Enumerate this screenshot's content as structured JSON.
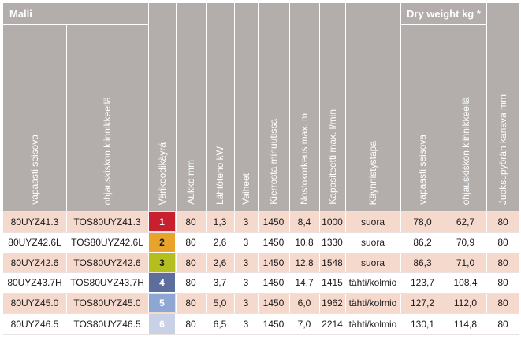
{
  "header": {
    "group_model": "Malli",
    "group_dry_weight": "Dry weight kg *",
    "columns": [
      "vapaasti seisova",
      "ohjauskiskon kiinnikkeellä",
      "Värikoodikäyrä",
      "Aukko mm",
      "Lähtöteho kW",
      "Vaiheet",
      "Kierrosta minuutissa",
      "Nostokorkeus max. m",
      "Kapasiteetti max. l/min",
      "Käynnistystapa",
      "vapaasti seisova",
      "ohjauskiskon kiinnikkeellä",
      "Juoksupyörän kanava mm"
    ]
  },
  "rows": [
    {
      "model": "80UYZ41.3",
      "rail_model": "TOS80UYZ41.3",
      "color_code": "1",
      "color": "#c8202f",
      "code_text_color": "#ffffff",
      "opening": "80",
      "power": "1,3",
      "phases": "3",
      "rpm": "1450",
      "head": "8,4",
      "capacity": "1000",
      "start": "suora",
      "weight_free": "78,0",
      "weight_rail": "62,7",
      "channel": "80"
    },
    {
      "model": "80UYZ42.6L",
      "rail_model": "TOS80UYZ42.6L",
      "color_code": "2",
      "color": "#e8a32a",
      "code_text_color": "#1a1a1a",
      "opening": "80",
      "power": "2,6",
      "phases": "3",
      "rpm": "1450",
      "head": "10,8",
      "capacity": "1330",
      "start": "suora",
      "weight_free": "86,2",
      "weight_rail": "70,9",
      "channel": "80"
    },
    {
      "model": "80UYZ42.6",
      "rail_model": "TOS80UYZ42.6",
      "color_code": "3",
      "color": "#b4be1e",
      "code_text_color": "#1a1a1a",
      "opening": "80",
      "power": "2,6",
      "phases": "3",
      "rpm": "1450",
      "head": "12,8",
      "capacity": "1548",
      "start": "suora",
      "weight_free": "86,3",
      "weight_rail": "71,0",
      "channel": "80"
    },
    {
      "model": "80UYZ43.7H",
      "rail_model": "TOS80UYZ43.7H",
      "color_code": "4",
      "color": "#5e6e9c",
      "code_text_color": "#ffffff",
      "opening": "80",
      "power": "3,7",
      "phases": "3",
      "rpm": "1450",
      "head": "14,7",
      "capacity": "1415",
      "start": "tähti/kolmio",
      "weight_free": "123,7",
      "weight_rail": "108,4",
      "channel": "80"
    },
    {
      "model": "80UYZ45.0",
      "rail_model": "TOS80UYZ45.0",
      "color_code": "5",
      "color": "#8da7d2",
      "code_text_color": "#ffffff",
      "opening": "80",
      "power": "5,0",
      "phases": "3",
      "rpm": "1450",
      "head": "6,0",
      "capacity": "1962",
      "start": "tähti/kolmio",
      "weight_free": "127,2",
      "weight_rail": "112,0",
      "channel": "80"
    },
    {
      "model": "80UYZ46.5",
      "rail_model": "TOS80UYZ46.5",
      "color_code": "6",
      "color": "#c8d1e6",
      "code_text_color": "#ffffff",
      "opening": "80",
      "power": "6,5",
      "phases": "3",
      "rpm": "1450",
      "head": "7,0",
      "capacity": "2214",
      "start": "tähti/kolmio",
      "weight_free": "130,1",
      "weight_rail": "114,8",
      "channel": "80"
    }
  ]
}
